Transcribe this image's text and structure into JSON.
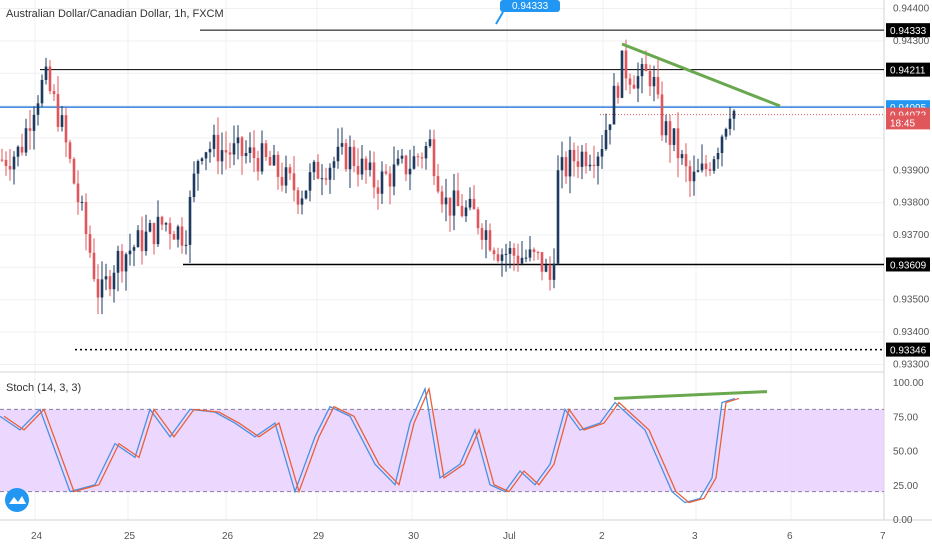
{
  "header": {
    "symbol_title": "Australian Dollar/Canadian Dollar, 1h, FXCM",
    "top_callout": "0.94333"
  },
  "colors": {
    "bull": "#1e3a5f",
    "bear": "#e0575b",
    "blue_line": "#2f7fe0",
    "green_trend": "#6aa84f",
    "stoch_band": "#e4c8ff",
    "stoch_k": "#4a90e2",
    "stoch_d": "#e9603a",
    "bid_label": "#2196f3",
    "ask_label": "#e0575b"
  },
  "chart_data": [
    {
      "type": "candlestick",
      "title": "Australian Dollar/Canadian Dollar, 1h, FXCM",
      "ylim": [
        0.9332,
        0.9442
      ],
      "y_ticks": [
        "0.94400",
        "0.94300",
        "0.93900",
        "0.93800",
        "0.93700",
        "0.93500",
        "0.93400",
        "0.93300"
      ],
      "x_ticks": [
        "24",
        "25",
        "26",
        "29",
        "30",
        "Jul",
        "2",
        "3",
        "6",
        "7"
      ],
      "price_levels": [
        {
          "label": "0.94333",
          "value": 0.94333,
          "style": "solid-black"
        },
        {
          "label": "0.94211",
          "value": 0.94211,
          "style": "solid-black"
        },
        {
          "label": "0.94095",
          "value": 0.94095,
          "style": "solid-blue"
        },
        {
          "label": "0.94072",
          "value": 0.94072,
          "style": "current"
        },
        {
          "label": "18:45",
          "value": 0.94048,
          "style": "countdown"
        },
        {
          "label": "0.93609",
          "value": 0.93609,
          "style": "solid-black-thick"
        },
        {
          "label": "0.93346",
          "value": 0.93346,
          "style": "dotted-black"
        }
      ],
      "trendlines": [
        {
          "name": "descending-resistance",
          "points": [
            [
              "2",
              0.9427
            ],
            [
              "6",
              0.9408
            ]
          ]
        }
      ]
    },
    {
      "type": "line",
      "title": "Stoch (14, 3, 3)",
      "ylim": [
        0,
        100
      ],
      "y_ticks": [
        "100.00",
        "75.00",
        "50.00",
        "25.00",
        "0.00"
      ],
      "band": [
        20,
        80
      ],
      "trendlines": [
        {
          "name": "stoch-divergence-line",
          "points": [
            [
              "2",
              87
            ],
            [
              "6",
              92
            ]
          ]
        }
      ]
    }
  ]
}
